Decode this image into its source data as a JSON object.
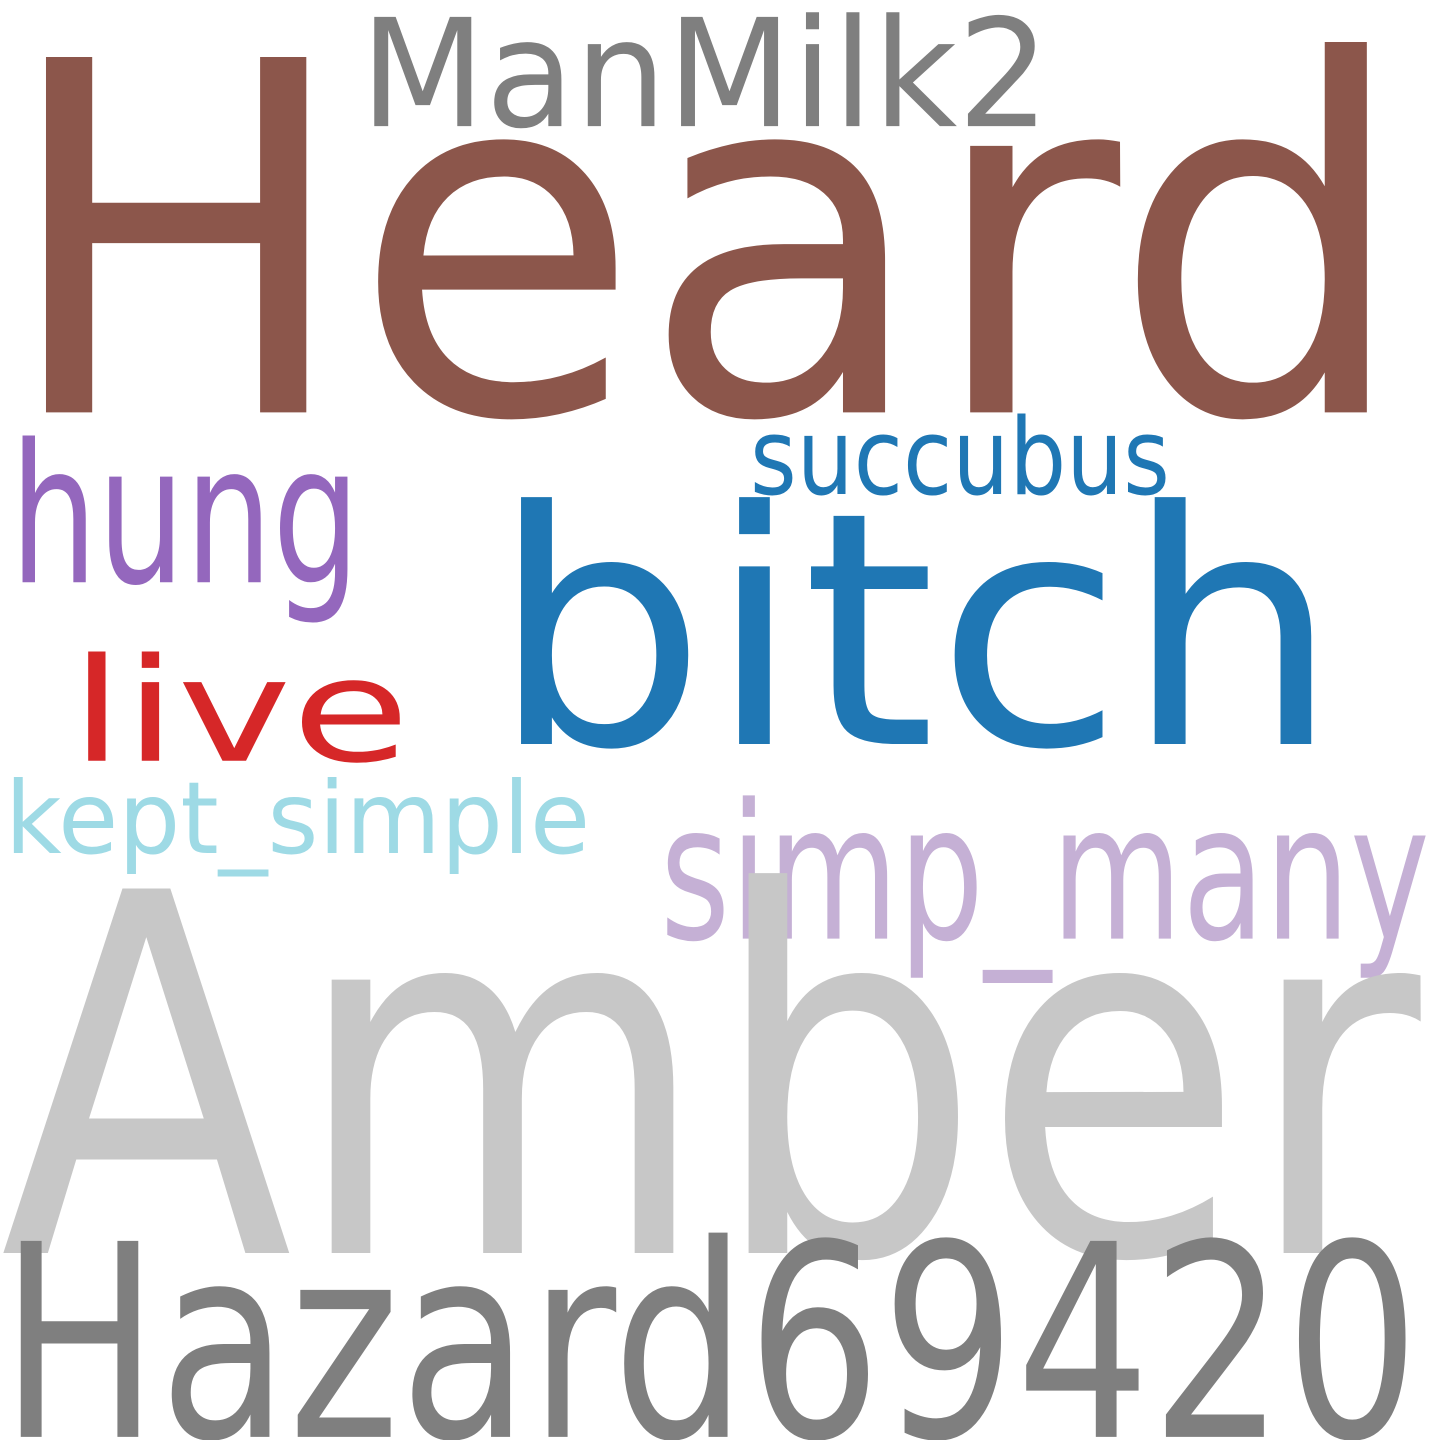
{
  "words": {
    "heard": {
      "text": "Heard",
      "color": "#8c564b"
    },
    "amber": {
      "text": "Amber",
      "color": "#c7c7c7"
    },
    "bitch": {
      "text": "bitch",
      "color": "#1f77b4"
    },
    "hazard": {
      "text": "Hazard69420",
      "color": "#7f7f7f"
    },
    "manmilk": {
      "text": "ManMilk2",
      "color": "#7f7f7f"
    },
    "hung": {
      "text": "hung",
      "color": "#9467bd"
    },
    "succubus": {
      "text": "succubus",
      "color": "#1f77b4"
    },
    "simp": {
      "text": "simp_many",
      "color": "#c5b0d5"
    },
    "live": {
      "text": "live",
      "color": "#d62728"
    },
    "kept": {
      "text": "kept_simple",
      "color": "#9edae5"
    }
  }
}
